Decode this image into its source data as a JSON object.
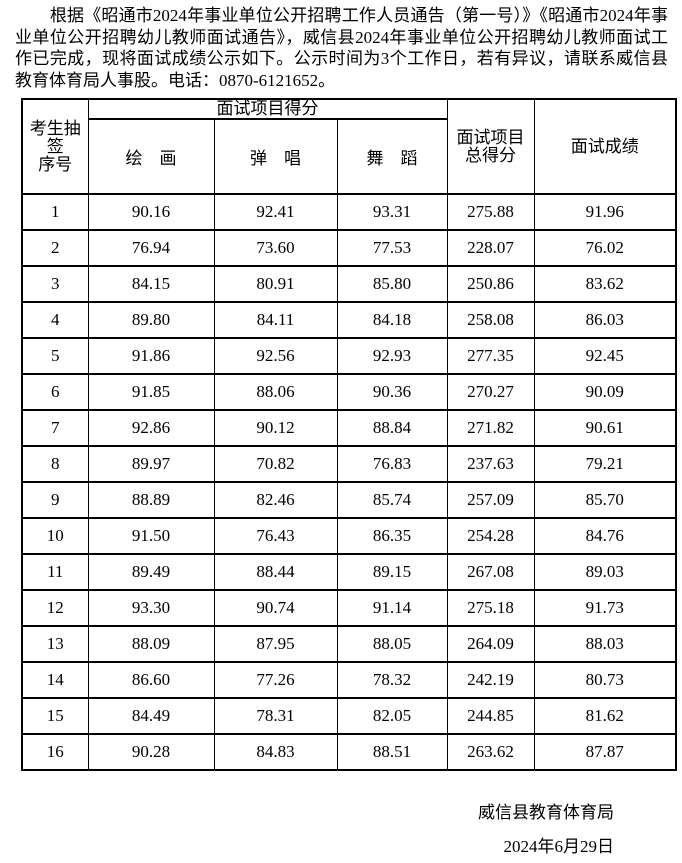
{
  "intro": "根据《昭通市2024年事业单位公开招聘工作人员通告（第一号）》《昭通市2024年事业单位公开招聘幼儿教师面试通告》，威信县2024年事业单位公开招聘幼儿教师面试工作已完成，现将面试成绩公示如下。公示时间为3个工作日，若有异议，请联系威信县教育体育局人事股。电话：0870-6121652。",
  "colors": {
    "text": "#000000",
    "background": "#ffffff",
    "border": "#000000"
  },
  "table": {
    "headers": {
      "candidate_no_line1": "考生抽签",
      "candidate_no_line2": "序号",
      "group": "面试项目得分",
      "sub": [
        "绘　画",
        "弹　唱",
        "舞　蹈"
      ],
      "total_line1": "面试项目",
      "total_line2": "总得分",
      "final": "面试成绩"
    },
    "columns": [
      "no",
      "painting",
      "singing",
      "dancing",
      "total",
      "final"
    ],
    "rows": [
      {
        "no": "1",
        "painting": "90.16",
        "singing": "92.41",
        "dancing": "93.31",
        "total": "275.88",
        "final": "91.96"
      },
      {
        "no": "2",
        "painting": "76.94",
        "singing": "73.60",
        "dancing": "77.53",
        "total": "228.07",
        "final": "76.02"
      },
      {
        "no": "3",
        "painting": "84.15",
        "singing": "80.91",
        "dancing": "85.80",
        "total": "250.86",
        "final": "83.62"
      },
      {
        "no": "4",
        "painting": "89.80",
        "singing": "84.11",
        "dancing": "84.18",
        "total": "258.08",
        "final": "86.03"
      },
      {
        "no": "5",
        "painting": "91.86",
        "singing": "92.56",
        "dancing": "92.93",
        "total": "277.35",
        "final": "92.45"
      },
      {
        "no": "6",
        "painting": "91.85",
        "singing": "88.06",
        "dancing": "90.36",
        "total": "270.27",
        "final": "90.09"
      },
      {
        "no": "7",
        "painting": "92.86",
        "singing": "90.12",
        "dancing": "88.84",
        "total": "271.82",
        "final": "90.61"
      },
      {
        "no": "8",
        "painting": "89.97",
        "singing": "70.82",
        "dancing": "76.83",
        "total": "237.63",
        "final": "79.21"
      },
      {
        "no": "9",
        "painting": "88.89",
        "singing": "82.46",
        "dancing": "85.74",
        "total": "257.09",
        "final": "85.70"
      },
      {
        "no": "10",
        "painting": "91.50",
        "singing": "76.43",
        "dancing": "86.35",
        "total": "254.28",
        "final": "84.76"
      },
      {
        "no": "11",
        "painting": "89.49",
        "singing": "88.44",
        "dancing": "89.15",
        "total": "267.08",
        "final": "89.03"
      },
      {
        "no": "12",
        "painting": "93.30",
        "singing": "90.74",
        "dancing": "91.14",
        "total": "275.18",
        "final": "91.73"
      },
      {
        "no": "13",
        "painting": "88.09",
        "singing": "87.95",
        "dancing": "88.05",
        "total": "264.09",
        "final": "88.03"
      },
      {
        "no": "14",
        "painting": "86.60",
        "singing": "77.26",
        "dancing": "78.32",
        "total": "242.19",
        "final": "80.73"
      },
      {
        "no": "15",
        "painting": "84.49",
        "singing": "78.31",
        "dancing": "82.05",
        "total": "244.85",
        "final": "81.62"
      },
      {
        "no": "16",
        "painting": "90.28",
        "singing": "84.83",
        "dancing": "88.51",
        "total": "263.62",
        "final": "87.87"
      }
    ]
  },
  "footer": {
    "org": "威信县教育体育局",
    "date": "2024年6月29日"
  }
}
